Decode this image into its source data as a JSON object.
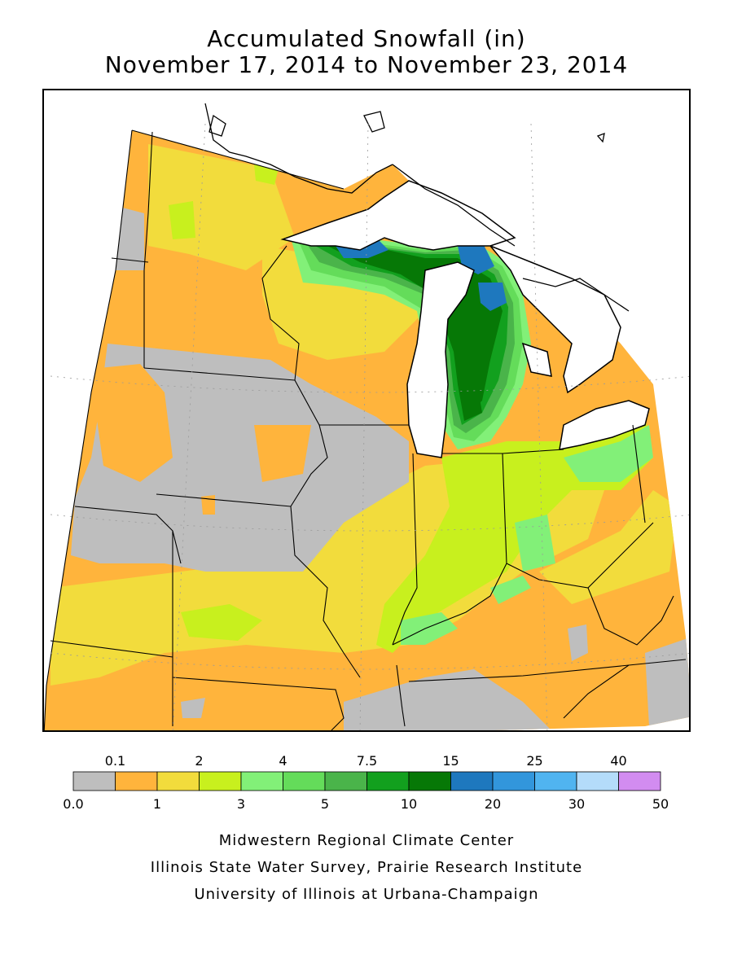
{
  "title": {
    "line1": "Accumulated Snowfall (in)",
    "line2": "November 17, 2014 to November 23, 2014"
  },
  "legend": {
    "top_labels": [
      "0.1",
      "2",
      "4",
      "7.5",
      "15",
      "25",
      "40"
    ],
    "bottom_labels": [
      "0.0",
      "1",
      "3",
      "5",
      "10",
      "20",
      "30",
      "50"
    ],
    "colors": [
      "#bebebe",
      "#ffb43c",
      "#f2dc3c",
      "#c8f01e",
      "#82f078",
      "#64dc5a",
      "#4ab44a",
      "#12a01e",
      "#067806",
      "#1e78be",
      "#3296dc",
      "#50b4f0",
      "#b4dcfa",
      "#d28cf0"
    ]
  },
  "credits": {
    "line1": "Midwestern Regional Climate Center",
    "line2": "Illinois State Water Survey, Prairie Research Institute",
    "line3": "University of Illinois at Urbana-Champaign"
  }
}
